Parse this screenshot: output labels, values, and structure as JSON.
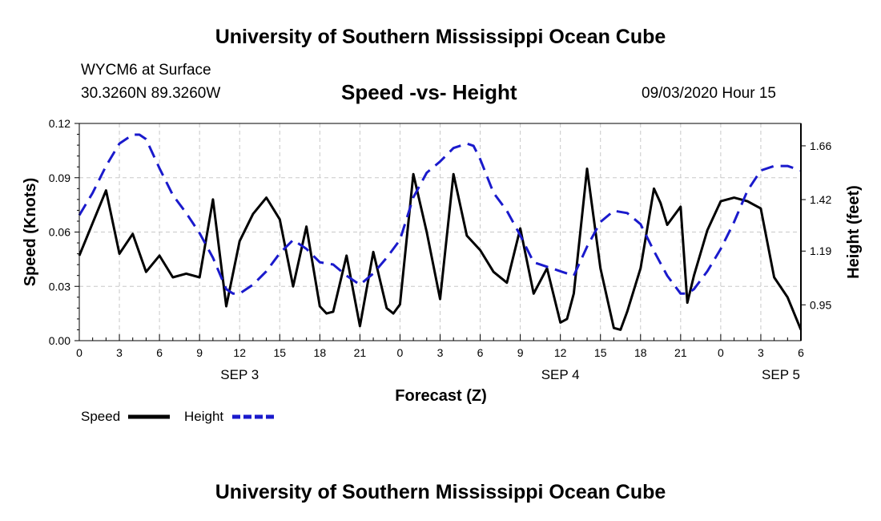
{
  "page": {
    "top_title": "University of Southern Mississippi Ocean Cube",
    "bottom_title": "University of Southern Mississippi Ocean Cube",
    "station": "WYCM6 at Surface",
    "coordinates": "30.3260N 89.3260W",
    "subtitle": "Speed -vs- Height",
    "datetime": "09/03/2020 Hour 15"
  },
  "colors": {
    "speed": "#000000",
    "height": "#1a1acc",
    "grid": "#c8c8c8"
  },
  "chart_data": {
    "type": "line",
    "xlabel": "Forecast (Z)",
    "ylabel_left": "Speed (Knots)",
    "ylabel_right": "Height (feet)",
    "xlim": [
      0,
      54
    ],
    "ylim_left": [
      0,
      0.12
    ],
    "ylim_right": [
      0.79,
      1.76
    ],
    "x_ticks": [
      {
        "x": 0,
        "label": "0"
      },
      {
        "x": 3,
        "label": "3"
      },
      {
        "x": 6,
        "label": "6"
      },
      {
        "x": 9,
        "label": "9"
      },
      {
        "x": 12,
        "label": "12"
      },
      {
        "x": 15,
        "label": "15"
      },
      {
        "x": 18,
        "label": "18"
      },
      {
        "x": 21,
        "label": "21"
      },
      {
        "x": 24,
        "label": "0"
      },
      {
        "x": 27,
        "label": "3"
      },
      {
        "x": 30,
        "label": "6"
      },
      {
        "x": 33,
        "label": "9"
      },
      {
        "x": 36,
        "label": "12"
      },
      {
        "x": 39,
        "label": "15"
      },
      {
        "x": 42,
        "label": "18"
      },
      {
        "x": 45,
        "label": "21"
      },
      {
        "x": 48,
        "label": "0"
      },
      {
        "x": 51,
        "label": "3"
      },
      {
        "x": 54,
        "label": "6"
      }
    ],
    "day_labels": [
      {
        "x": 12,
        "label": "SEP 3"
      },
      {
        "x": 36,
        "label": "SEP 4"
      },
      {
        "x": 52.5,
        "label": "SEP 5"
      }
    ],
    "y_ticks_left": [
      "0.00",
      "0.03",
      "0.06",
      "0.09",
      "0.12"
    ],
    "y_ticks_left_values": [
      0,
      0.03,
      0.06,
      0.09,
      0.12
    ],
    "y_ticks_right": [
      "0.95",
      "1.19",
      "1.42",
      "1.66"
    ],
    "y_ticks_right_values": [
      0.95,
      1.19,
      1.42,
      1.66
    ],
    "legend": [
      {
        "name": "Speed",
        "style": "solid"
      },
      {
        "name": "Height",
        "style": "dashed"
      }
    ],
    "series": [
      {
        "name": "Speed",
        "axis": "left",
        "x": [
          0,
          1,
          2,
          3,
          4,
          5,
          6,
          7,
          8,
          9,
          10,
          11,
          12,
          13,
          14,
          15,
          16,
          17,
          18,
          18.5,
          19,
          20,
          21,
          22,
          23,
          23.5,
          24,
          25,
          26,
          27,
          28,
          29,
          30,
          31,
          32,
          33,
          34,
          35,
          36,
          36.5,
          37,
          38,
          39,
          40,
          40.5,
          41,
          42,
          43,
          43.5,
          44,
          45,
          45.5,
          46,
          47,
          48,
          49,
          50,
          51,
          52,
          53,
          54
        ],
        "values": [
          0.047,
          0.065,
          0.083,
          0.048,
          0.059,
          0.038,
          0.047,
          0.035,
          0.037,
          0.035,
          0.078,
          0.019,
          0.055,
          0.07,
          0.079,
          0.067,
          0.03,
          0.063,
          0.019,
          0.015,
          0.016,
          0.047,
          0.008,
          0.049,
          0.018,
          0.015,
          0.02,
          0.092,
          0.06,
          0.023,
          0.092,
          0.058,
          0.05,
          0.038,
          0.032,
          0.062,
          0.026,
          0.04,
          0.01,
          0.012,
          0.026,
          0.095,
          0.04,
          0.007,
          0.006,
          0.016,
          0.04,
          0.084,
          0.076,
          0.064,
          0.074,
          0.021,
          0.036,
          0.061,
          0.077,
          0.079,
          0.077,
          0.073,
          0.035,
          0.024,
          0.006
        ]
      },
      {
        "name": "Height",
        "axis": "right",
        "x": [
          0,
          1,
          2,
          3,
          4,
          4.5,
          5,
          6,
          7,
          8,
          9,
          10,
          11,
          11.5,
          12,
          13,
          14,
          15,
          16,
          17,
          18,
          19,
          20,
          21,
          22,
          23,
          24,
          25,
          26,
          27,
          28,
          29,
          29.5,
          30,
          31,
          32,
          33,
          34,
          35,
          36,
          37,
          38,
          39,
          40,
          41,
          42,
          43,
          44,
          45,
          45.5,
          46,
          47,
          48,
          49,
          50,
          51,
          52,
          53,
          54
        ],
        "values": [
          1.35,
          1.45,
          1.57,
          1.67,
          1.71,
          1.71,
          1.69,
          1.56,
          1.44,
          1.36,
          1.27,
          1.16,
          1.02,
          1.0,
          1.0,
          1.04,
          1.1,
          1.18,
          1.24,
          1.2,
          1.14,
          1.13,
          1.08,
          1.04,
          1.09,
          1.16,
          1.24,
          1.43,
          1.54,
          1.59,
          1.65,
          1.67,
          1.66,
          1.6,
          1.45,
          1.37,
          1.26,
          1.14,
          1.12,
          1.1,
          1.08,
          1.21,
          1.32,
          1.37,
          1.36,
          1.31,
          1.19,
          1.08,
          1.0,
          1.0,
          1.02,
          1.1,
          1.2,
          1.32,
          1.46,
          1.55,
          1.57,
          1.57,
          1.55
        ]
      }
    ]
  }
}
